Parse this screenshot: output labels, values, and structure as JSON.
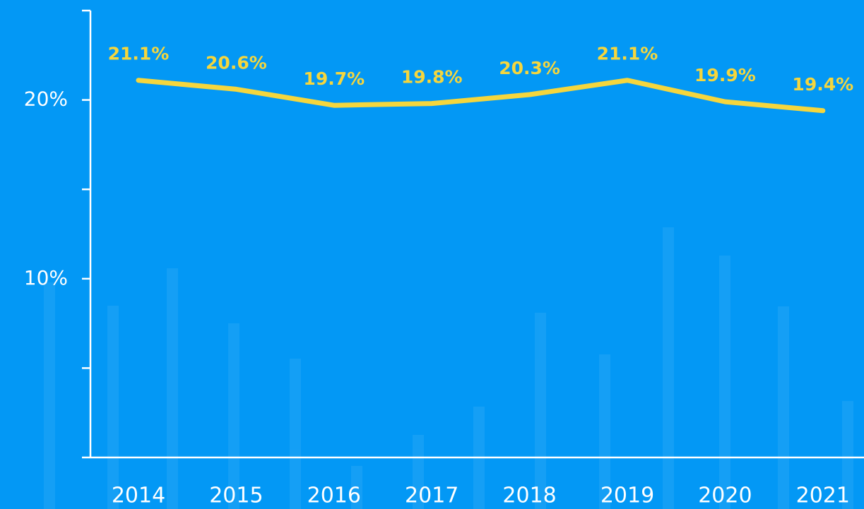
{
  "chart_data": {
    "type": "line",
    "categories": [
      "2014",
      "2015",
      "2016",
      "2017",
      "2018",
      "2019",
      "2020",
      "2021"
    ],
    "series": [
      {
        "color": "#f5d63d",
        "values": [
          21.1,
          20.6,
          19.7,
          19.8,
          20.3,
          21.1,
          19.9,
          19.4
        ],
        "value_labels": [
          "21.1%",
          "20.6%",
          "19.7%",
          "19.8%",
          "20.3%",
          "21.1%",
          "19.9%",
          "19.4%"
        ]
      }
    ],
    "ylim": [
      0,
      25
    ],
    "yticks": [
      {
        "value": 10,
        "label": "10%"
      },
      {
        "value": 20,
        "label": "20%"
      }
    ],
    "yminor_ticks": [
      0,
      5,
      15,
      25
    ]
  }
}
